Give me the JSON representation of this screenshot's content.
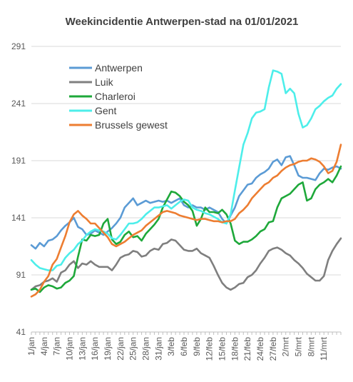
{
  "chart_data": {
    "type": "line",
    "title": "Weekincidentie  Antwerpen-stad  na 01/01/2021",
    "xlabel": "",
    "ylabel": "",
    "ylim": [
      41,
      291
    ],
    "yticks": [
      41,
      91,
      141,
      191,
      241,
      291
    ],
    "grid": "horizontal",
    "legend_position": "top-left",
    "x_tick_labels": [
      "1/jan",
      "4/jan",
      "7/jan",
      "10/jan",
      "13/jan",
      "16/jan",
      "19/jan",
      "22/jan",
      "25/jan",
      "28/jan",
      "31/jan",
      "3/feb",
      "6/feb",
      "9/feb",
      "12/feb",
      "15/feb",
      "18/feb",
      "21/feb",
      "24/feb",
      "27/feb",
      "2/mrt",
      "5/mrt",
      "8/mrt",
      "11/mrt"
    ],
    "series": [
      {
        "name": "Antwerpen",
        "color": "#5B9BD5",
        "values": [
          117,
          114,
          119,
          116,
          121,
          122,
          125,
          130,
          134,
          137,
          141,
          133,
          131,
          126,
          127,
          130,
          128,
          126,
          129,
          132,
          136,
          141,
          150,
          154,
          158,
          152,
          154,
          156,
          154,
          155,
          156,
          155,
          156,
          154,
          156,
          158,
          152,
          150,
          152,
          150,
          150,
          148,
          150,
          148,
          146,
          140,
          136,
          143,
          150,
          160,
          165,
          170,
          171,
          176,
          179,
          181,
          184,
          190,
          192,
          187,
          194,
          195,
          187,
          178,
          176,
          176,
          175,
          174,
          180,
          184,
          183,
          185,
          186,
          184
        ]
      },
      {
        "name": "Luik",
        "color": "#7F7F7F",
        "values": [
          78,
          81,
          82,
          85,
          86,
          88,
          85,
          93,
          95,
          100,
          103,
          97,
          101,
          100,
          103,
          100,
          98,
          98,
          98,
          95,
          100,
          106,
          108,
          109,
          112,
          111,
          107,
          108,
          112,
          114,
          113,
          118,
          119,
          122,
          121,
          117,
          113,
          112,
          112,
          114,
          110,
          108,
          106,
          99,
          91,
          84,
          80,
          78,
          80,
          83,
          84,
          89,
          91,
          95,
          101,
          106,
          112,
          114,
          115,
          113,
          110,
          108,
          104,
          101,
          97,
          92,
          89,
          86,
          86,
          90,
          104,
          112,
          118,
          123
        ]
      },
      {
        "name": "Charleroi",
        "color": "#1EA83A",
        "values": [
          78,
          79,
          76,
          80,
          82,
          81,
          79,
          80,
          84,
          86,
          90,
          107,
          122,
          121,
          126,
          125,
          126,
          136,
          140,
          122,
          118,
          120,
          126,
          129,
          124,
          125,
          121,
          127,
          131,
          135,
          140,
          150,
          157,
          164,
          163,
          160,
          155,
          152,
          147,
          134,
          140,
          150,
          146,
          146,
          145,
          148,
          144,
          136,
          121,
          118,
          120,
          120,
          122,
          125,
          129,
          131,
          137,
          138,
          150,
          158,
          160,
          162,
          166,
          170,
          172,
          156,
          158,
          166,
          170,
          172,
          175,
          172,
          178,
          186
        ]
      },
      {
        "name": "Gent",
        "color": "#4DEEEA",
        "values": [
          104,
          100,
          97,
          96,
          95,
          95,
          99,
          100,
          106,
          110,
          113,
          118,
          121,
          126,
          129,
          131,
          130,
          129,
          127,
          123,
          122,
          126,
          131,
          136,
          136,
          137,
          140,
          144,
          147,
          150,
          150,
          151,
          152,
          149,
          152,
          155,
          157,
          156,
          150,
          148,
          147,
          145,
          144,
          142,
          140,
          137,
          136,
          144,
          165,
          185,
          205,
          215,
          228,
          233,
          234,
          236,
          255,
          270,
          269,
          267,
          250,
          254,
          250,
          232,
          220,
          222,
          228,
          236,
          239,
          243,
          246,
          248,
          254,
          258
        ]
      },
      {
        "name": "Brussels gewest",
        "color": "#ED7D31",
        "values": [
          72,
          74,
          78,
          85,
          90,
          100,
          105,
          115,
          125,
          137,
          144,
          147,
          143,
          140,
          136,
          136,
          132,
          128,
          124,
          118,
          116,
          118,
          120,
          123,
          126,
          128,
          130,
          134,
          137,
          140,
          143,
          146,
          147,
          146,
          145,
          143,
          142,
          141,
          140,
          139,
          140,
          140,
          139,
          138,
          138,
          137,
          138,
          138,
          140,
          145,
          148,
          152,
          158,
          162,
          166,
          170,
          172,
          176,
          178,
          182,
          185,
          187,
          188,
          190,
          191,
          191,
          193,
          192,
          190,
          186,
          180,
          182,
          190,
          205
        ]
      }
    ]
  }
}
